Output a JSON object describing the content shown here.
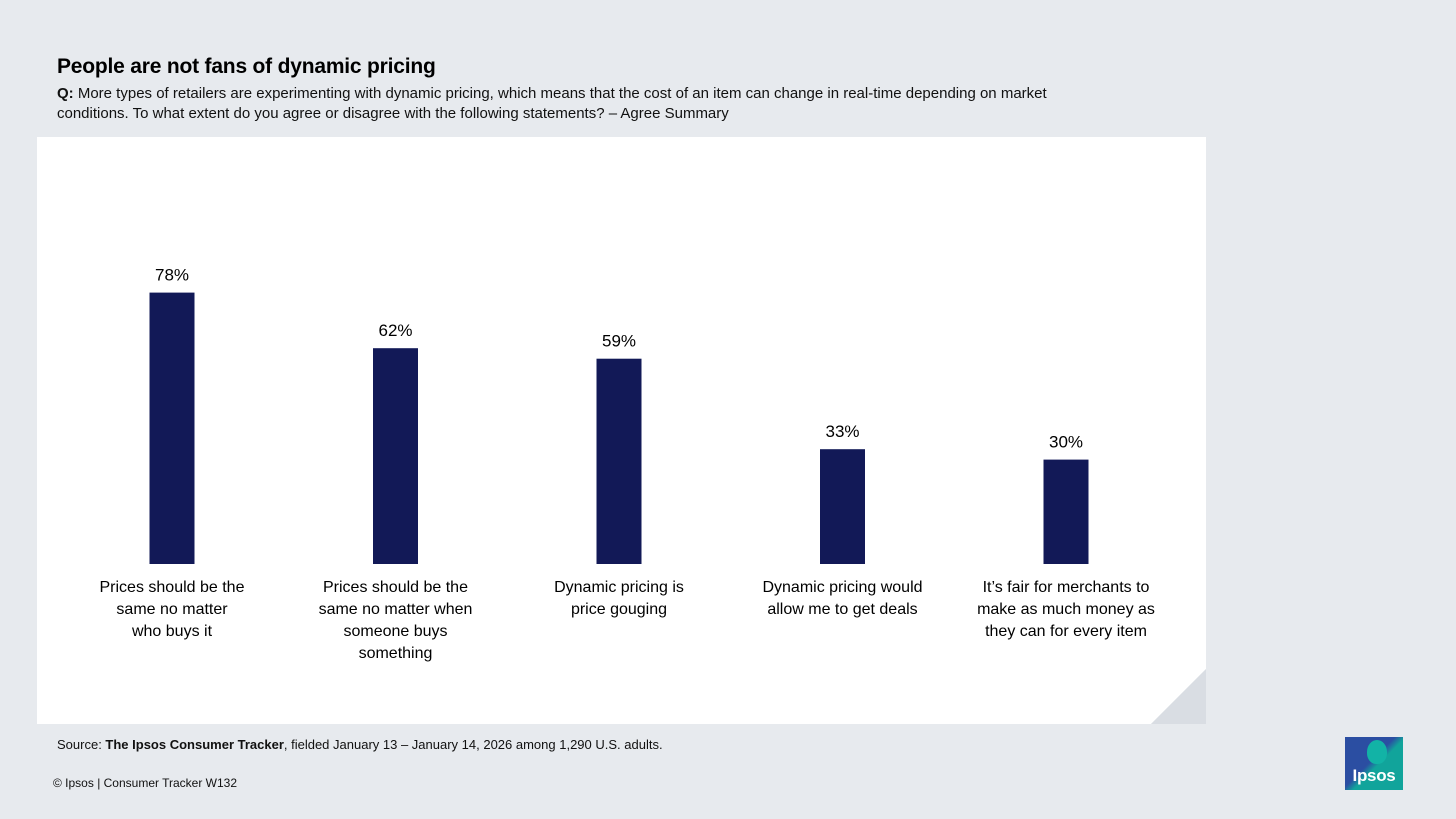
{
  "header": {
    "title": "People are not fans of dynamic pricing",
    "question_label": "Q:",
    "question_text": "More types of retailers are experimenting with dynamic pricing, which means that the cost of an item can change in real-time depending on market conditions. To what extent do you agree or disagree with the following statements? – Agree Summary"
  },
  "chart_data": {
    "type": "bar",
    "title": "People are not fans of dynamic pricing",
    "xlabel": "",
    "ylabel": "",
    "ylim": [
      0,
      100
    ],
    "grid": false,
    "categories": [
      "Prices should be the same no matter who buys it",
      "Prices should be the same no matter when someone buys something",
      "Dynamic pricing is price gouging",
      "Dynamic pricing would allow me to get deals",
      "It’s fair for merchants to make as much money as they can for every item"
    ],
    "category_lines": [
      [
        "Prices should be the",
        "same no matter",
        "who buys it"
      ],
      [
        "Prices should be the",
        "same no matter when",
        "someone buys",
        "something"
      ],
      [
        "Dynamic pricing is",
        "price gouging"
      ],
      [
        "Dynamic pricing would",
        "allow me to get deals"
      ],
      [
        "It’s fair for merchants to",
        "make as much money as",
        "they can for every item"
      ]
    ],
    "values": [
      78,
      62,
      59,
      33,
      30
    ],
    "value_labels": [
      "78%",
      "62%",
      "59%",
      "33%",
      "30%"
    ],
    "bar_color": "#121957"
  },
  "source": {
    "prefix": "Source: ",
    "name": "The Ipsos Consumer Tracker",
    "suffix": ", fielded January 13 – January 14, 2026 among 1,290 U.S. adults."
  },
  "footer": {
    "text": "© Ipsos | Consumer Tracker W132"
  },
  "logo": {
    "text": "Ipsos",
    "colors": [
      "#2b4ea2",
      "#11a49b"
    ]
  }
}
